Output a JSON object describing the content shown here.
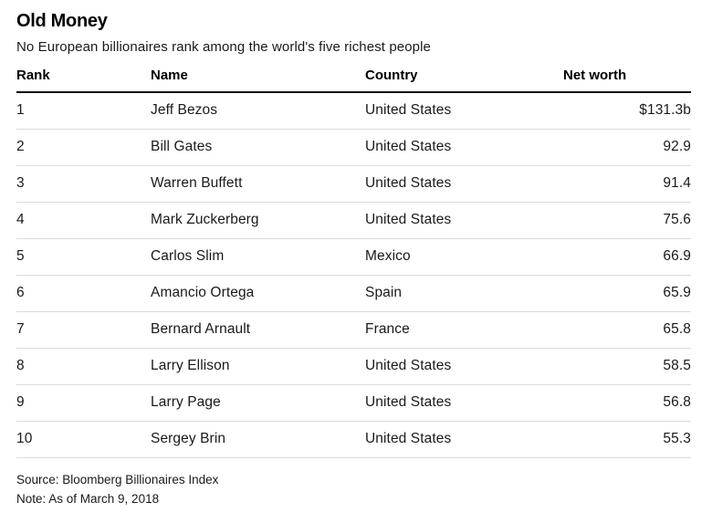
{
  "title": "Old Money",
  "subtitle": "No European billionaires rank among the world's five richest people",
  "table": {
    "columns": [
      "Rank",
      "Name",
      "Country",
      "Net worth"
    ],
    "rows": [
      {
        "rank": "1",
        "name": "Jeff Bezos",
        "country": "United States",
        "net_worth": "$131.3b"
      },
      {
        "rank": "2",
        "name": "Bill Gates",
        "country": "United States",
        "net_worth": "92.9"
      },
      {
        "rank": "3",
        "name": "Warren Buffett",
        "country": "United States",
        "net_worth": "91.4"
      },
      {
        "rank": "4",
        "name": "Mark Zuckerberg",
        "country": "United States",
        "net_worth": "75.6"
      },
      {
        "rank": "5",
        "name": "Carlos Slim",
        "country": "Mexico",
        "net_worth": "66.9"
      },
      {
        "rank": "6",
        "name": "Amancio Ortega",
        "country": "Spain",
        "net_worth": "65.9"
      },
      {
        "rank": "7",
        "name": "Bernard Arnault",
        "country": "France",
        "net_worth": "65.8"
      },
      {
        "rank": "8",
        "name": "Larry Ellison",
        "country": "United States",
        "net_worth": "58.5"
      },
      {
        "rank": "9",
        "name": "Larry Page",
        "country": "United States",
        "net_worth": "56.8"
      },
      {
        "rank": "10",
        "name": "Sergey Brin",
        "country": "United States",
        "net_worth": "55.3"
      }
    ]
  },
  "footer": {
    "source": "Source: Bloomberg Billionaires Index",
    "note": "Note: As of March 9, 2018"
  },
  "colors": {
    "background": "#ffffff",
    "title_text": "#000000",
    "body_text": "#1a1a1a",
    "header_rule": "#000000",
    "row_divider": "#dcdcdc"
  },
  "chart_data": {
    "type": "table",
    "title": "Old Money",
    "subtitle": "No European billionaires rank among the world's five richest people",
    "columns": [
      "Rank",
      "Name",
      "Country",
      "Net worth"
    ],
    "rows": [
      [
        1,
        "Jeff Bezos",
        "United States",
        131.3
      ],
      [
        2,
        "Bill Gates",
        "United States",
        92.9
      ],
      [
        3,
        "Warren Buffett",
        "United States",
        91.4
      ],
      [
        4,
        "Mark Zuckerberg",
        "United States",
        75.6
      ],
      [
        5,
        "Carlos Slim",
        "Mexico",
        66.9
      ],
      [
        6,
        "Amancio Ortega",
        "Spain",
        65.9
      ],
      [
        7,
        "Bernard Arnault",
        "France",
        65.8
      ],
      [
        8,
        "Larry Ellison",
        "United States",
        58.5
      ],
      [
        9,
        "Larry Page",
        "United States",
        56.8
      ],
      [
        10,
        "Sergey Brin",
        "United States",
        55.3
      ]
    ],
    "net_worth_unit": "billions USD",
    "source": "Source: Bloomberg Billionaires Index",
    "note": "Note: As of March 9, 2018"
  }
}
